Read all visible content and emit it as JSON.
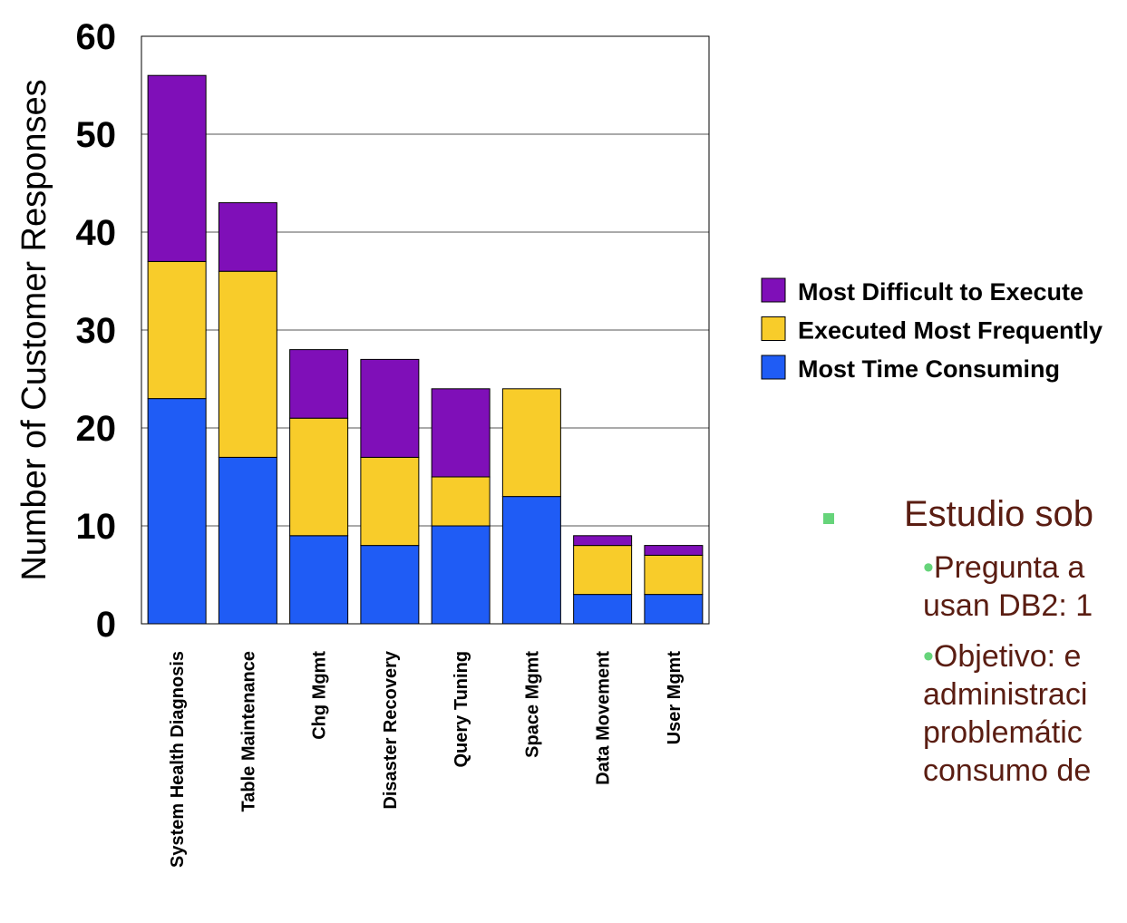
{
  "chart_data": {
    "type": "bar",
    "stacked": true,
    "categories": [
      "System Health Diagnosis",
      "Table Maintenance",
      "Chg Mgmt",
      "Disaster Recovery",
      "Query Tuning",
      "Space Mgmt",
      "Data Movement",
      "User Mgmt"
    ],
    "series": [
      {
        "name": "Most Time Consuming",
        "color": "#1f5cf5",
        "values": [
          23,
          17,
          9,
          8,
          10,
          13,
          3,
          3
        ]
      },
      {
        "name": "Executed Most Frequently",
        "color": "#f8cc2a",
        "values": [
          14,
          19,
          12,
          9,
          5,
          11,
          5,
          4
        ]
      },
      {
        "name": "Most Difficult to Execute",
        "color": "#7f0fb8",
        "values": [
          19,
          7,
          7,
          10,
          9,
          0,
          1,
          1
        ]
      }
    ],
    "title": "",
    "xlabel": "",
    "ylabel": "Number of Customer Responses",
    "ylim": [
      0,
      60
    ],
    "yticks": [
      "0",
      "10",
      "20",
      "30",
      "40",
      "50",
      "60"
    ],
    "grid": true,
    "legend_position": "right",
    "legend_order": [
      "Most Difficult to Execute",
      "Executed Most Frequently",
      "Most Time Consuming"
    ]
  },
  "side_text": {
    "heading": "Estudio sob",
    "items": [
      {
        "line1": "Pregunta a",
        "line2": "usan DB2: 1"
      },
      {
        "line1": "Objetivo: e",
        "line2": "administraci",
        "line3": "problemátic",
        "line4": "consumo de"
      }
    ]
  }
}
